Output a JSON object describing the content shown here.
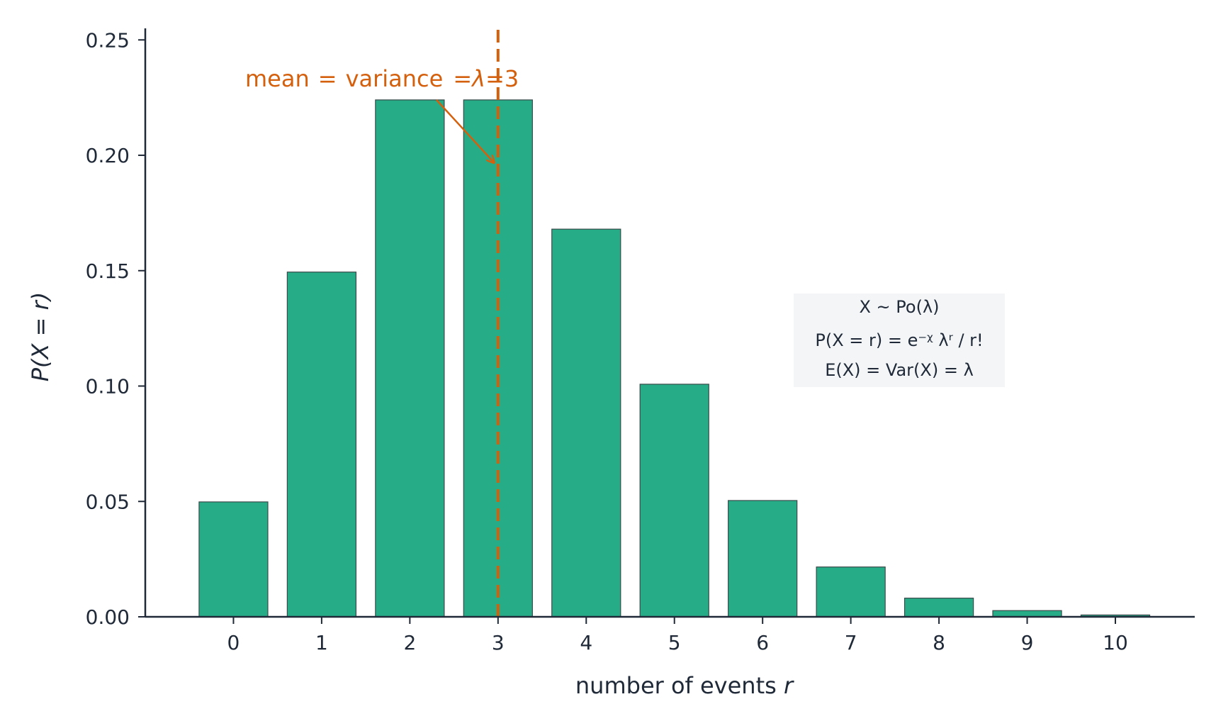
{
  "chart_data": {
    "type": "bar",
    "categories": [
      "0",
      "1",
      "2",
      "3",
      "4",
      "5",
      "6",
      "7",
      "8",
      "9",
      "10"
    ],
    "values": [
      0.0498,
      0.1494,
      0.224,
      0.224,
      0.168,
      0.1008,
      0.0504,
      0.0216,
      0.0081,
      0.0027,
      0.0008
    ],
    "x": [
      0,
      1,
      2,
      3,
      4,
      5,
      6,
      7,
      8,
      9,
      10
    ],
    "xlim": [
      -1,
      10.9
    ],
    "ylim": [
      0,
      0.255
    ],
    "yticks": [
      0,
      0.05,
      0.1,
      0.15,
      0.2,
      0.25
    ],
    "ytick_labels": [
      "0.00",
      "0.05",
      "0.10",
      "0.15",
      "0.20",
      "0.25"
    ],
    "xlabel_text": "number of events ",
    "xlabel_var": "r",
    "ylabel": "P(X = r)",
    "grid": false,
    "colors": {
      "bar": "#27ac88",
      "bar_edge": "#3a4a4a",
      "accent": "#d4600e",
      "axis": "#1f2937",
      "box_bg": "#f3f5f7"
    },
    "mean_line": {
      "x": 3
    },
    "annotation": {
      "text_mean": "mean",
      "text_eq1": "=",
      "text_variance": "variance",
      "text_eq2": "=",
      "text_lambda": "λ",
      "text_eq3": "=",
      "text_value": "3",
      "target": {
        "x": 3,
        "y": 0.2
      }
    },
    "info_box": {
      "line1": "X ~ Po(λ)",
      "line2": "P(X = r) = e⁻ᵡ λʳ / r!",
      "line3": "E(X) = Var(X) = λ"
    }
  }
}
